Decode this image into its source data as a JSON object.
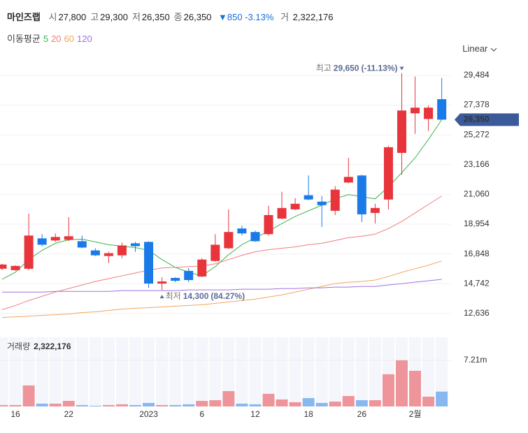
{
  "header": {
    "name": "마인즈랩",
    "fields": [
      {
        "label": "시",
        "value": "27,800"
      },
      {
        "label": "고",
        "value": "29,300"
      },
      {
        "label": "저",
        "value": "26,350"
      },
      {
        "label": "종",
        "value": "26,350"
      }
    ],
    "change": "▼850",
    "change_pct": "-3.13%",
    "volume_label": "거",
    "volume": "2,322,176"
  },
  "scale_button": "Linear",
  "chart_data": {
    "type": "candlestick",
    "categories": [
      null,
      "16",
      null,
      null,
      null,
      "22",
      null,
      null,
      null,
      null,
      null,
      "2023",
      null,
      null,
      null,
      "6",
      null,
      null,
      null,
      "12",
      null,
      null,
      null,
      "18",
      null,
      null,
      null,
      "26",
      null,
      null,
      null,
      "2월",
      null,
      null
    ],
    "open": [
      15800,
      15700,
      15800,
      17950,
      17800,
      17850,
      17750,
      17100,
      16700,
      16750,
      17600,
      17700,
      14750,
      15150,
      15650,
      15250,
      16350,
      17250,
      18650,
      18400,
      18250,
      19350,
      20000,
      21000,
      20550,
      19900,
      21900,
      22400,
      19750,
      20700,
      24000,
      26800,
      26400,
      27800
    ],
    "high": [
      16150,
      16050,
      19700,
      18250,
      18300,
      19450,
      18150,
      17250,
      17000,
      17650,
      17700,
      17750,
      15200,
      15200,
      15850,
      16550,
      18250,
      20000,
      18850,
      18500,
      20250,
      21250,
      20800,
      22400,
      20950,
      21650,
      23650,
      22450,
      20400,
      24500,
      29650,
      29400,
      27350,
      29300
    ],
    "low": [
      15700,
      15650,
      15700,
      17400,
      17700,
      17750,
      17250,
      16700,
      16200,
      16550,
      17000,
      14450,
      14300,
      14850,
      14850,
      15200,
      16300,
      17200,
      18150,
      17700,
      18150,
      19300,
      19950,
      20650,
      18750,
      19600,
      21850,
      19100,
      19000,
      20000,
      22450,
      25350,
      25550,
      26350
    ],
    "close": [
      16100,
      16000,
      18150,
      17500,
      18050,
      18100,
      17300,
      16750,
      16900,
      17450,
      17400,
      14750,
      14900,
      14950,
      15000,
      16450,
      17500,
      18400,
      18300,
      17750,
      19600,
      20100,
      20400,
      20700,
      20300,
      21400,
      22300,
      19650,
      20100,
      24400,
      27000,
      27200,
      27200,
      26350
    ],
    "up_color": "#e8343b",
    "down_color": "#1a7ae8",
    "ylim": [
      11590,
      30470
    ],
    "yticks": [
      {
        "value": 29484,
        "label": "29,484"
      },
      {
        "value": 27378,
        "label": "27,378"
      },
      {
        "value": 25272,
        "label": "25,272"
      },
      {
        "value": 23166,
        "label": "23,166"
      },
      {
        "value": 21060,
        "label": "21,060"
      },
      {
        "value": 18954,
        "label": "18,954"
      },
      {
        "value": 16848,
        "label": "16,848"
      },
      {
        "value": 14742,
        "label": "14,742"
      },
      {
        "value": 12636,
        "label": "12,636"
      }
    ],
    "grid": true,
    "ma_legend_title": "이동평균",
    "ma_series": [
      {
        "name": "5",
        "color": "#3cb44b",
        "values": [
          15050,
          15550,
          16450,
          17100,
          17600,
          17850,
          17900,
          17700,
          17500,
          17400,
          17300,
          17100,
          16450,
          15900,
          15550,
          15300,
          15950,
          16800,
          17500,
          18000,
          18450,
          19000,
          19500,
          19900,
          20300,
          20750,
          21050,
          20900,
          20750,
          21600,
          22600,
          23650,
          24950,
          26350
        ]
      },
      {
        "name": "20",
        "color": "#ef7d7d",
        "values": [
          12900,
          13200,
          13550,
          13850,
          14150,
          14400,
          14650,
          14900,
          15100,
          15300,
          15500,
          15700,
          15850,
          15900,
          15950,
          16000,
          16150,
          16450,
          16750,
          17000,
          17150,
          17250,
          17350,
          17500,
          17600,
          17800,
          18000,
          18100,
          18250,
          18650,
          19150,
          19750,
          20350,
          20950
        ]
      },
      {
        "name": "60",
        "color": "#f2a55c",
        "values": [
          12350,
          12400,
          12450,
          12500,
          12550,
          12600,
          12700,
          12750,
          12850,
          12950,
          13000,
          13050,
          13100,
          13150,
          13200,
          13250,
          13350,
          13450,
          13550,
          13650,
          13800,
          13950,
          14150,
          14350,
          14550,
          14750,
          14850,
          14900,
          15000,
          15250,
          15550,
          15800,
          16050,
          16350
        ]
      },
      {
        "name": "120",
        "color": "#a070e0",
        "values": [
          14150,
          14150,
          14150,
          14150,
          14200,
          14200,
          14200,
          14200,
          14200,
          14250,
          14250,
          14250,
          14250,
          14250,
          14300,
          14300,
          14300,
          14300,
          14350,
          14350,
          14350,
          14400,
          14400,
          14450,
          14450,
          14500,
          14500,
          14550,
          14550,
          14650,
          14750,
          14850,
          14950,
          15050
        ]
      }
    ],
    "annotations": {
      "high": {
        "label": "최고",
        "value": "29,650",
        "change": "(-11.13%)"
      },
      "low": {
        "label": "최저",
        "value": "14,300",
        "change": "(84.27%)"
      }
    },
    "last_price_label": "26,350",
    "volume": {
      "title": "거래량",
      "value_label": "2,322,176",
      "values": [
        220000,
        220000,
        3280000,
        440000,
        440000,
        870000,
        220000,
        110000,
        220000,
        330000,
        220000,
        550000,
        220000,
        220000,
        330000,
        870000,
        980000,
        2400000,
        440000,
        330000,
        1970000,
        1090000,
        660000,
        1310000,
        550000,
        760000,
        1640000,
        980000,
        980000,
        5030000,
        7210000,
        5570000,
        1530000,
        2322176
      ],
      "ylim": [
        0,
        10800000
      ],
      "yticks": [
        {
          "value": 7210000,
          "label": "7.21m"
        }
      ]
    }
  }
}
